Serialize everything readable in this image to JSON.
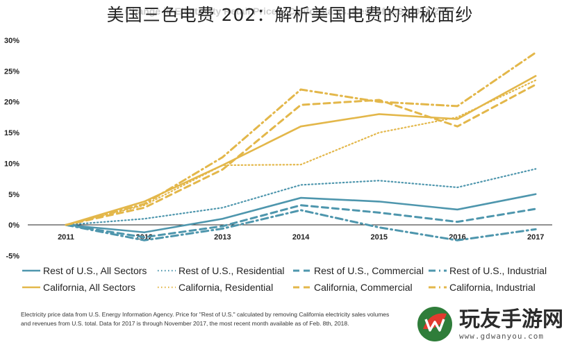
{
  "banner_title": "美国三色电费 202：解析美国电费的神秘面纱",
  "background_title": "Change in Electricity Retail Prices: California vs. Rest of U.S. 2011-2017",
  "chart_data": {
    "type": "line",
    "x": [
      "2011",
      "2012",
      "2013",
      "2014",
      "2015",
      "2016",
      "2017"
    ],
    "ylim": [
      -5,
      30
    ],
    "yticks": [
      "30%",
      "25%",
      "20%",
      "15%",
      "10%",
      "5%",
      "0%",
      "-5%"
    ],
    "ytick_values": [
      30,
      25,
      20,
      15,
      10,
      5,
      0,
      -5
    ],
    "series": [
      {
        "name": "Rest of U.S., All Sectors",
        "color": "#4e96ad",
        "style": "solid",
        "values": [
          0,
          -1.2,
          1.0,
          4.4,
          3.8,
          2.5,
          5.0
        ]
      },
      {
        "name": "Rest of U.S., Residential",
        "color": "#4e96ad",
        "style": "dotted",
        "values": [
          0,
          1.0,
          2.8,
          6.5,
          7.2,
          6.1,
          9.1
        ]
      },
      {
        "name": "Rest of U.S., Commercial",
        "color": "#4e96ad",
        "style": "dashed",
        "values": [
          0,
          -2.0,
          -0.2,
          3.2,
          2.0,
          0.5,
          2.6
        ]
      },
      {
        "name": "Rest of U.S., Industrial",
        "color": "#4e96ad",
        "style": "dashdot",
        "values": [
          0,
          -2.5,
          -0.6,
          2.4,
          -0.4,
          -2.5,
          -0.7
        ]
      },
      {
        "name": "California, All Sectors",
        "color": "#e3b74a",
        "style": "solid",
        "values": [
          0,
          3.8,
          9.7,
          16.0,
          18.0,
          17.2,
          24.2
        ]
      },
      {
        "name": "California, Residential",
        "color": "#e3b74a",
        "style": "dotted",
        "values": [
          0,
          3.2,
          9.7,
          9.8,
          15.0,
          17.5,
          23.5
        ]
      },
      {
        "name": "California, Commercial",
        "color": "#e3b74a",
        "style": "dashed",
        "values": [
          0,
          2.8,
          9.0,
          19.5,
          20.3,
          16.0,
          22.8
        ]
      },
      {
        "name": "California, Industrial",
        "color": "#e3b74a",
        "style": "dashdot",
        "values": [
          0,
          3.4,
          11.0,
          22.0,
          20.0,
          19.3,
          28.0
        ]
      }
    ],
    "grid": false,
    "legend": "bottom"
  },
  "source_note": {
    "line1": "Electricity price data from U.S. Energy Information Agency. Price for \"Rest of U.S.\" calculated by removing California electricity sales volumes",
    "line2": "and revenues from U.S. total. Data for 2017 is through November 2017, the most recent month available as of Feb. 8th, 2018."
  },
  "watermark": {
    "name": "玩友手游网",
    "url": "www.gdwanyou.com",
    "logo_icon": "w-leaf-logo-icon"
  }
}
